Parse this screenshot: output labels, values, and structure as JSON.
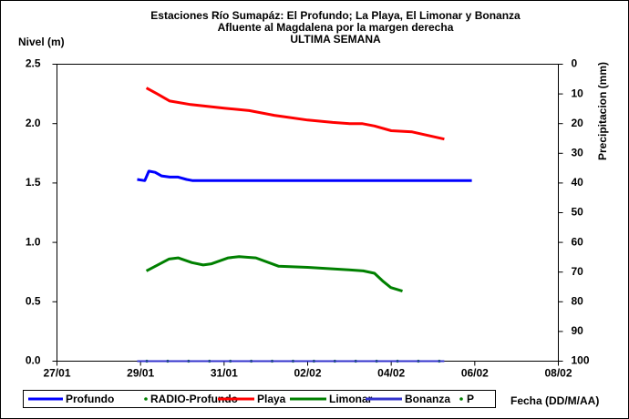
{
  "chart_data": {
    "type": "line",
    "title": "Estaciones Río Sumapáz: El Profundo; La Playa, El Limonar y Bonanza",
    "subtitle": "Afluente al Magdalena por la margen derecha",
    "subtitle2": "ULTIMA SEMANA",
    "ylabel": "Nivel (m)",
    "y2label": "Precipitacion (mm)",
    "xlabel": "Fecha (DD/M/AA)",
    "xlim": [
      27,
      39
    ],
    "xticks": [
      {
        "value": 27,
        "label": "27/01"
      },
      {
        "value": 29,
        "label": "29/01"
      },
      {
        "value": 31,
        "label": "31/01"
      },
      {
        "value": 33,
        "label": "02/02"
      },
      {
        "value": 35,
        "label": "04/02"
      },
      {
        "value": 37,
        "label": "06/02"
      },
      {
        "value": 39,
        "label": "08/02"
      }
    ],
    "ylim": [
      0,
      2.5
    ],
    "yticks": [
      {
        "value": 0,
        "label": "0.0"
      },
      0.5,
      {
        "value": 1,
        "label": "1.0"
      },
      1.5,
      {
        "value": 2,
        "label": "2.0"
      },
      2.5
    ],
    "y2lim": [
      100,
      0
    ],
    "y2ticks": [
      0,
      10,
      20,
      30,
      40,
      50,
      60,
      70,
      80,
      90,
      100
    ],
    "grid": false,
    "legend": "bottom",
    "series": [
      {
        "name": "Profundo",
        "color": "#0000ff",
        "style": "line",
        "x": [
          28.92,
          29.1,
          29.2,
          29.35,
          29.5,
          29.7,
          29.9,
          30.1,
          30.25,
          36.93
        ],
        "values": [
          1.53,
          1.52,
          1.6,
          1.59,
          1.56,
          1.55,
          1.55,
          1.53,
          1.52,
          1.52
        ]
      },
      {
        "name": "RADIO-Profundo",
        "color": "#008000",
        "style": "dots",
        "x": [
          29.15,
          29.65,
          30.15,
          30.65,
          31.15,
          31.65,
          32.15,
          32.65,
          33.15,
          33.65,
          34.15,
          34.65,
          35.15,
          35.65,
          36.15
        ],
        "values": [
          0,
          0,
          0,
          0,
          0,
          0,
          0,
          0,
          0,
          0,
          0,
          0,
          0,
          0,
          0
        ]
      },
      {
        "name": "Playa",
        "color": "#ff0000",
        "style": "line",
        "x": [
          29.14,
          29.4,
          29.7,
          30.2,
          31.0,
          31.6,
          32.2,
          33.0,
          33.6,
          34.0,
          34.3,
          34.6,
          35.0,
          35.5,
          36.27
        ],
        "values": [
          2.3,
          2.25,
          2.19,
          2.16,
          2.13,
          2.11,
          2.07,
          2.03,
          2.01,
          2.0,
          2.0,
          1.98,
          1.94,
          1.93,
          1.87
        ]
      },
      {
        "name": "Limonar",
        "color": "#008000",
        "style": "line",
        "x": [
          29.14,
          29.68,
          29.9,
          30.23,
          30.5,
          30.7,
          31.1,
          31.36,
          31.76,
          32.3,
          33.0,
          33.94,
          34.33,
          34.6,
          34.81,
          34.99,
          35.27
        ],
        "values": [
          0.76,
          0.86,
          0.87,
          0.83,
          0.81,
          0.82,
          0.87,
          0.88,
          0.87,
          0.8,
          0.79,
          0.77,
          0.76,
          0.74,
          0.67,
          0.62,
          0.59
        ]
      },
      {
        "name": "Bonanza",
        "color": "#3333cc",
        "style": "line",
        "x": [
          28.92,
          36.27
        ],
        "values": [
          0,
          0
        ]
      },
      {
        "name": "P",
        "color": "#008000",
        "style": "dots",
        "axis": "y2",
        "x": [],
        "values": []
      }
    ]
  }
}
